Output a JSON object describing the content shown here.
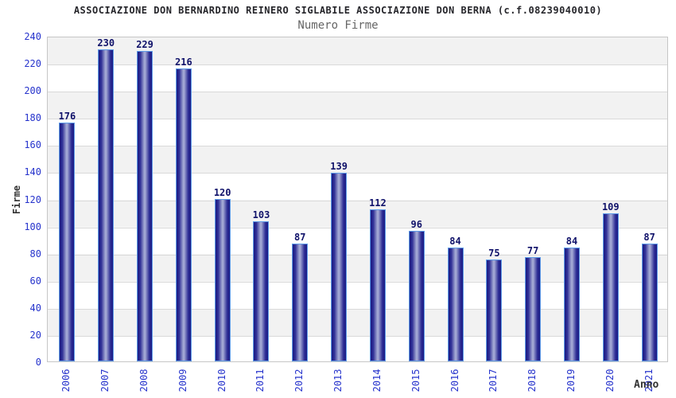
{
  "header": {
    "title": "ASSOCIAZIONE DON BERNARDINO REINERO SIGLABILE ASSOCIAZIONE DON BERNA (c.f.08239040010)",
    "subtitle": "Numero Firme"
  },
  "chart_data": {
    "type": "bar",
    "title": "ASSOCIAZIONE DON BERNARDINO REINERO SIGLABILE ASSOCIAZIONE DON BERNA (c.f.08239040010)",
    "subtitle": "Numero Firme",
    "categories": [
      "2006",
      "2007",
      "2008",
      "2009",
      "2010",
      "2011",
      "2012",
      "2013",
      "2014",
      "2015",
      "2016",
      "2017",
      "2018",
      "2019",
      "2020",
      "2021"
    ],
    "values": [
      176,
      230,
      229,
      216,
      120,
      103,
      87,
      139,
      112,
      96,
      84,
      75,
      77,
      84,
      109,
      87
    ],
    "xlabel": "Anno",
    "ylabel": "Firme",
    "ylim": [
      0,
      240
    ],
    "ytick_step": 20,
    "yticks": [
      0,
      20,
      40,
      60,
      80,
      100,
      120,
      140,
      160,
      180,
      200,
      220,
      240
    ],
    "legend": "none",
    "grid": "horizontal gridlines every 20 units with alternating gray/white bands",
    "colors": {
      "title": "#26262b",
      "subtitle": "#666666",
      "axis_tick_blue": "#2633cc",
      "value_label": "#10126a",
      "axis_title": "#333333",
      "band_gray": "#f2f2f2",
      "band_white": "#ffffff",
      "gridline": "#d9d9d9",
      "plot_border": "#c6c6c6",
      "bar_edge": "#1b1b83",
      "bar_mid": "#2d2d95",
      "bar_highlight": "#a3a8d4",
      "bar_border": "#5f9ce8"
    }
  }
}
